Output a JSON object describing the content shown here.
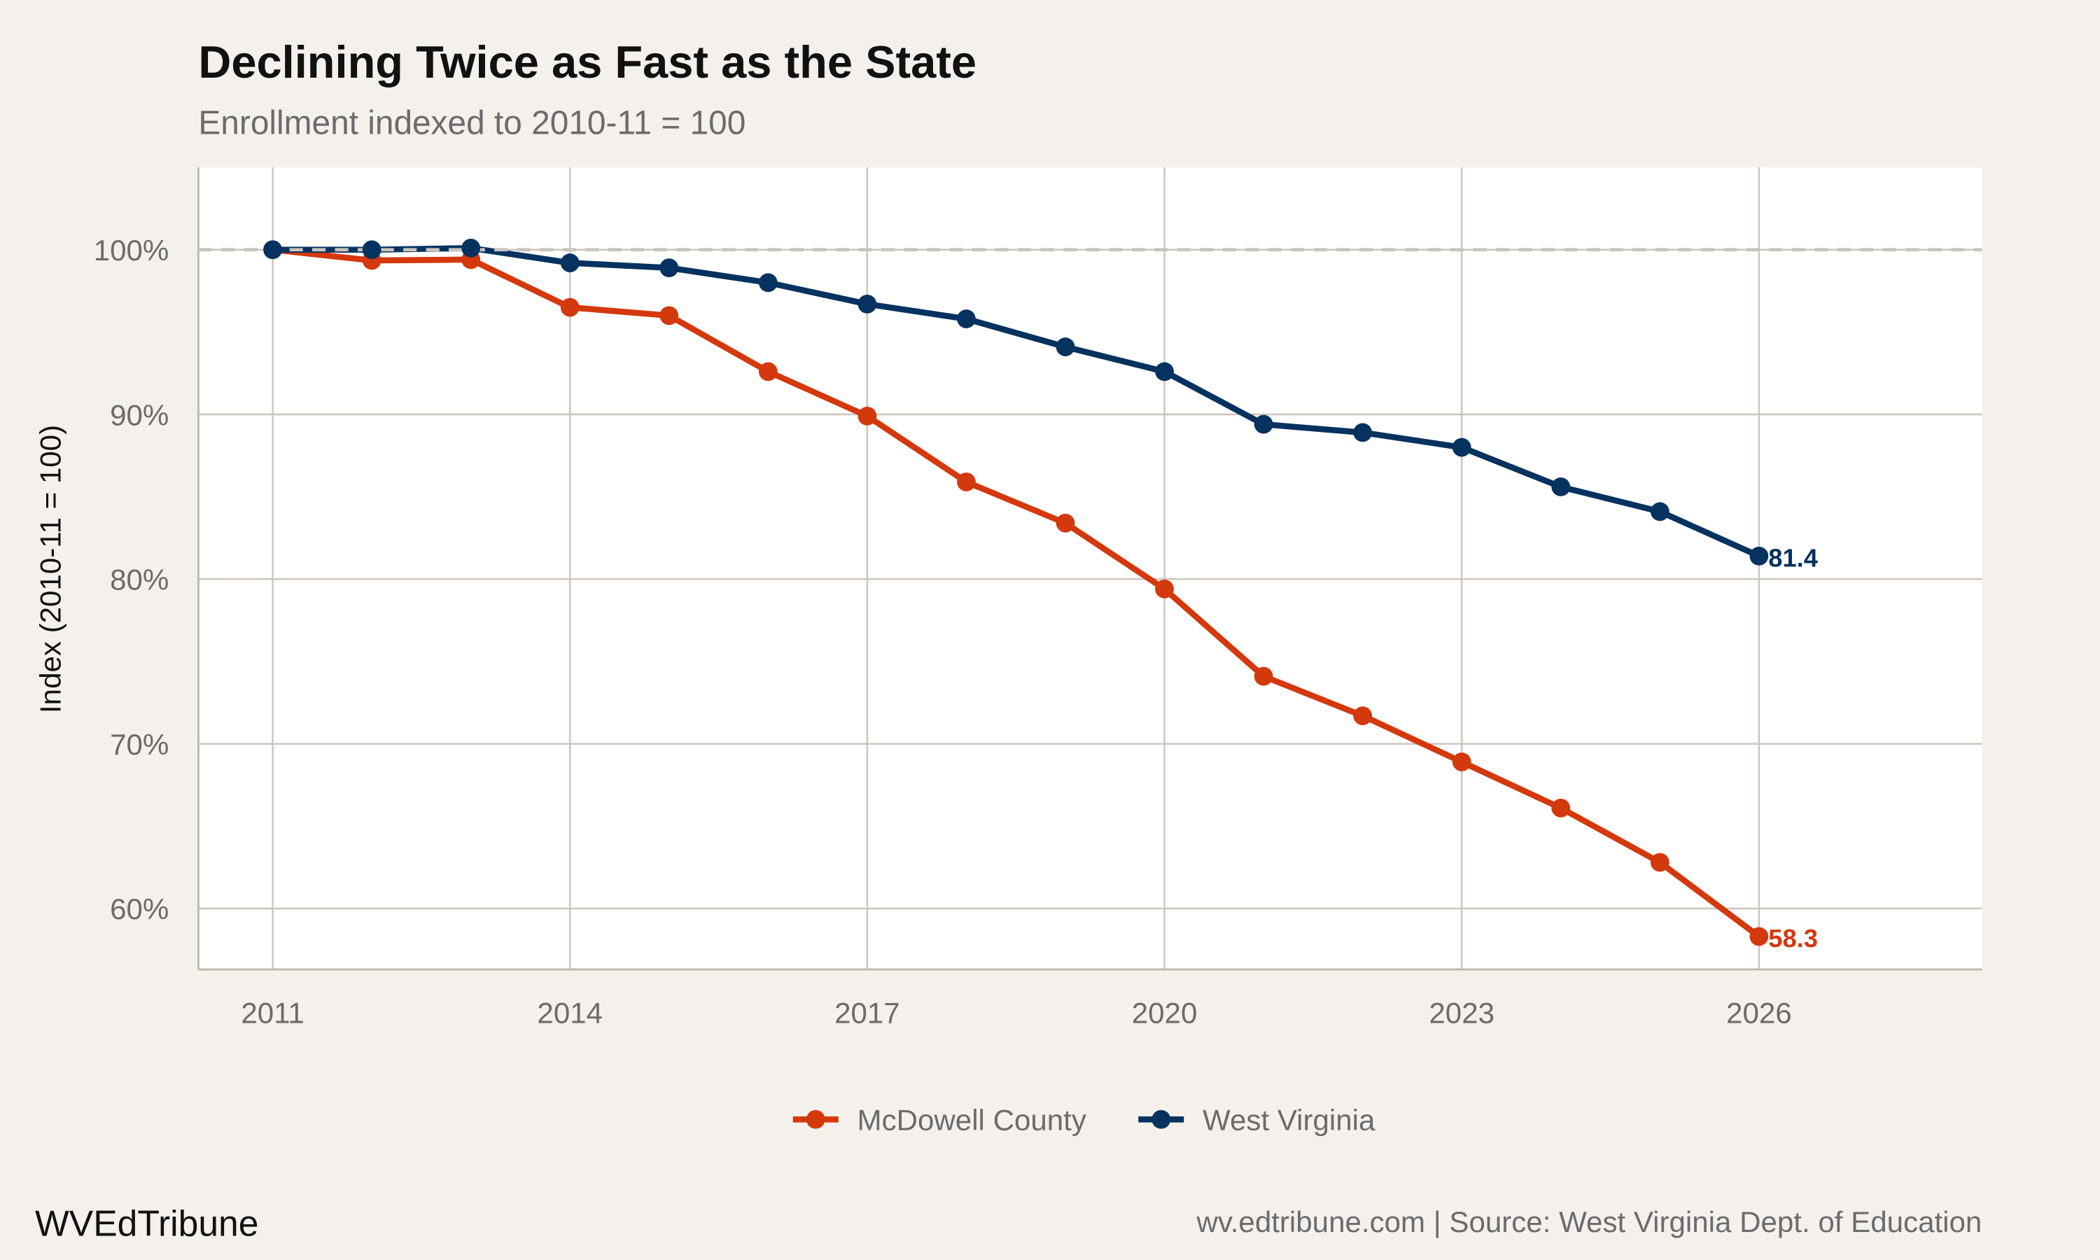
{
  "chart_data": {
    "type": "line",
    "title": "Declining Twice as Fast as the State",
    "subtitle": "Enrollment indexed to 2010-11 = 100",
    "xlabel": "",
    "ylabel": "Index (2010-11 = 100)",
    "xlim": [
      2010.25,
      2028.25
    ],
    "ylim": [
      56.3,
      105
    ],
    "x_ticks": [
      2011,
      2014,
      2017,
      2020,
      2023,
      2026
    ],
    "x_tick_labels": [
      "2011",
      "2014",
      "2017",
      "2020",
      "2023",
      "2026"
    ],
    "y_ticks": [
      60,
      70,
      80,
      90,
      100
    ],
    "y_tick_labels": [
      "60%",
      "70%",
      "80%",
      "90%",
      "100%"
    ],
    "reference_line": 100,
    "grid": true,
    "legend_position": "bottom",
    "x": [
      2011,
      2012,
      2013,
      2014,
      2015,
      2016,
      2017,
      2018,
      2019,
      2020,
      2021,
      2022,
      2023,
      2024,
      2025,
      2026
    ],
    "series": [
      {
        "name": "McDowell County",
        "color": "#D4380D",
        "end_label": "58.3",
        "values": [
          100,
          99.35,
          99.4,
          96.5,
          96.0,
          92.6,
          89.9,
          85.9,
          83.4,
          79.4,
          74.1,
          71.7,
          68.9,
          66.1,
          62.8,
          58.3
        ]
      },
      {
        "name": "West Virginia",
        "color": "#05325F",
        "end_label": "81.4",
        "values": [
          100,
          100,
          100.1,
          99.2,
          98.9,
          98.0,
          96.7,
          95.8,
          94.1,
          92.6,
          89.4,
          88.9,
          88.0,
          85.6,
          84.1,
          81.4
        ]
      }
    ]
  },
  "footer": {
    "brand": "WVEdTribune",
    "source": "wv.edtribune.com | Source: West Virginia Dept. of Education"
  }
}
